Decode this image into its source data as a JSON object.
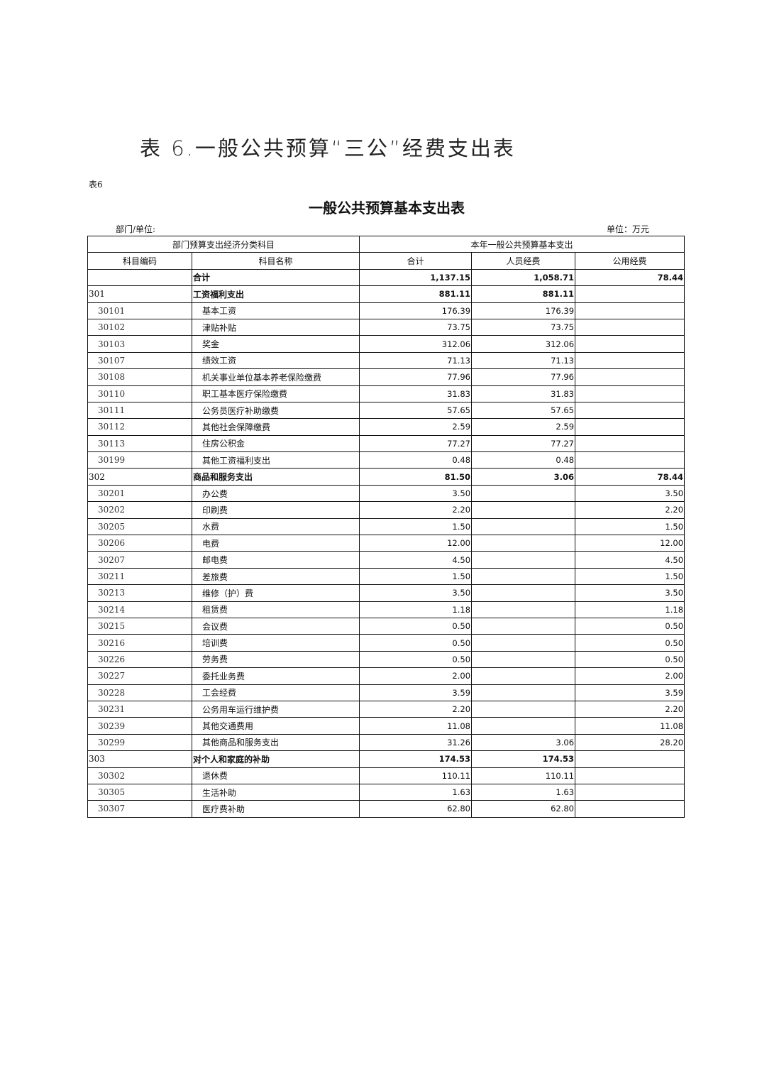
{
  "doc_title": "表 6.一般公共预算“三公”经费支出表",
  "table_tag": "表6",
  "table_title": "一般公共预算基本支出表",
  "dept_label": "部门/单位:",
  "unit_label": "单位：万元",
  "header": {
    "group_left": "部门预算支出经济分类科目",
    "group_right": "本年一般公共预算基本支出",
    "columns": [
      "科目编码",
      "科目名称",
      "合计",
      "人员经费",
      "公用经费"
    ]
  },
  "rows": [
    {
      "level": "summary",
      "code": "",
      "name": "合计",
      "total": "1,137.15",
      "personnel": "1,058.71",
      "public": "78.44"
    },
    {
      "level": "category",
      "code": "301",
      "name": "工资福利支出",
      "total": "881.11",
      "personnel": "881.11",
      "public": ""
    },
    {
      "level": "item",
      "code": "30101",
      "name": "基本工资",
      "total": "176.39",
      "personnel": "176.39",
      "public": ""
    },
    {
      "level": "item",
      "code": "30102",
      "name": "津贴补贴",
      "total": "73.75",
      "personnel": "73.75",
      "public": ""
    },
    {
      "level": "item",
      "code": "30103",
      "name": "奖金",
      "total": "312.06",
      "personnel": "312.06",
      "public": ""
    },
    {
      "level": "item",
      "code": "30107",
      "name": "绩效工资",
      "total": "71.13",
      "personnel": "71.13",
      "public": ""
    },
    {
      "level": "item",
      "code": "30108",
      "name": "机关事业单位基本养老保险缴费",
      "total": "77.96",
      "personnel": "77.96",
      "public": ""
    },
    {
      "level": "item",
      "code": "30110",
      "name": "职工基本医疗保险缴费",
      "total": "31.83",
      "personnel": "31.83",
      "public": ""
    },
    {
      "level": "item",
      "code": "30111",
      "name": "公务员医疗补助缴费",
      "total": "57.65",
      "personnel": "57.65",
      "public": ""
    },
    {
      "level": "item",
      "code": "30112",
      "name": "其他社会保障缴费",
      "total": "2.59",
      "personnel": "2.59",
      "public": ""
    },
    {
      "level": "item",
      "code": "30113",
      "name": "住房公积金",
      "total": "77.27",
      "personnel": "77.27",
      "public": ""
    },
    {
      "level": "item",
      "code": "30199",
      "name": "其他工资福利支出",
      "total": "0.48",
      "personnel": "0.48",
      "public": ""
    },
    {
      "level": "category",
      "code": "302",
      "name": "商品和服务支出",
      "total": "81.50",
      "personnel": "3.06",
      "public": "78.44"
    },
    {
      "level": "item",
      "code": "30201",
      "name": "办公费",
      "total": "3.50",
      "personnel": "",
      "public": "3.50"
    },
    {
      "level": "item",
      "code": "30202",
      "name": "印刷费",
      "total": "2.20",
      "personnel": "",
      "public": "2.20"
    },
    {
      "level": "item",
      "code": "30205",
      "name": "水费",
      "total": "1.50",
      "personnel": "",
      "public": "1.50"
    },
    {
      "level": "item",
      "code": "30206",
      "name": "电费",
      "total": "12.00",
      "personnel": "",
      "public": "12.00"
    },
    {
      "level": "item",
      "code": "30207",
      "name": "邮电费",
      "total": "4.50",
      "personnel": "",
      "public": "4.50"
    },
    {
      "level": "item",
      "code": "30211",
      "name": "差旅费",
      "total": "1.50",
      "personnel": "",
      "public": "1.50"
    },
    {
      "level": "item",
      "code": "30213",
      "name": "维修（护）费",
      "total": "3.50",
      "personnel": "",
      "public": "3.50"
    },
    {
      "level": "item",
      "code": "30214",
      "name": "租赁费",
      "total": "1.18",
      "personnel": "",
      "public": "1.18"
    },
    {
      "level": "item",
      "code": "30215",
      "name": "会议费",
      "total": "0.50",
      "personnel": "",
      "public": "0.50"
    },
    {
      "level": "item",
      "code": "30216",
      "name": "培训费",
      "total": "0.50",
      "personnel": "",
      "public": "0.50"
    },
    {
      "level": "item",
      "code": "30226",
      "name": "劳务费",
      "total": "0.50",
      "personnel": "",
      "public": "0.50"
    },
    {
      "level": "item",
      "code": "30227",
      "name": "委托业务费",
      "total": "2.00",
      "personnel": "",
      "public": "2.00"
    },
    {
      "level": "item",
      "code": "30228",
      "name": "工会经费",
      "total": "3.59",
      "personnel": "",
      "public": "3.59"
    },
    {
      "level": "item",
      "code": "30231",
      "name": "公务用车运行维护费",
      "total": "2.20",
      "personnel": "",
      "public": "2.20"
    },
    {
      "level": "item",
      "code": "30239",
      "name": "其他交通费用",
      "total": "11.08",
      "personnel": "",
      "public": "11.08"
    },
    {
      "level": "item",
      "code": "30299",
      "name": "其他商品和服务支出",
      "total": "31.26",
      "personnel": "3.06",
      "public": "28.20"
    },
    {
      "level": "category",
      "code": "303",
      "name": "对个人和家庭的补助",
      "total": "174.53",
      "personnel": "174.53",
      "public": ""
    },
    {
      "level": "item",
      "code": "30302",
      "name": "退休费",
      "total": "110.11",
      "personnel": "110.11",
      "public": ""
    },
    {
      "level": "item",
      "code": "30305",
      "name": "生活补助",
      "total": "1.63",
      "personnel": "1.63",
      "public": ""
    },
    {
      "level": "item",
      "code": "30307",
      "name": "医疗费补助",
      "total": "62.80",
      "personnel": "62.80",
      "public": ""
    }
  ]
}
